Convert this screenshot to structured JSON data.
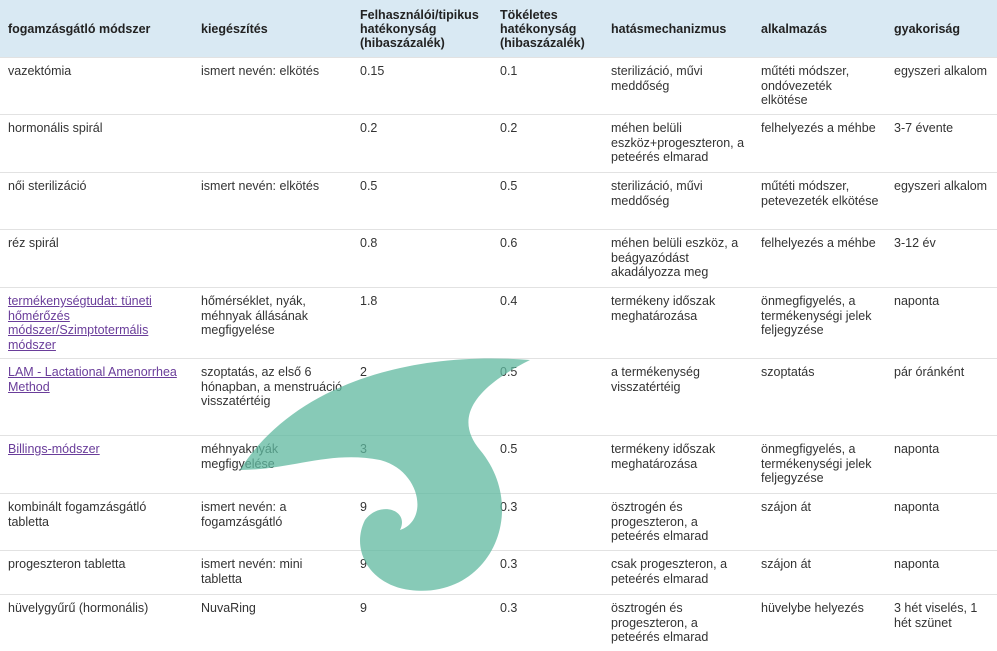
{
  "headers": [
    "fogamzásgátló módszer",
    "kiegészítés",
    "Felhasználói/tipikus hatékonyság (hibaszázalék)",
    "Tökéletes hatékonyság (hibaszázalék)",
    "hatásmechanizmus",
    "alkalmazás",
    "gyakoriság"
  ],
  "rows": [
    [
      "vazektómia",
      "ismert nevén: elkötés",
      "0.15",
      "0.1",
      "sterilizáció, művi meddőség",
      "műtéti módszer, ondóvezeték elkötése",
      "egyszeri alkalom"
    ],
    [
      "hormonális spirál",
      "",
      "0.2",
      "0.2",
      "méhen belüli eszköz+progeszteron, a peteérés elmarad",
      "felhelyezés a méhbe",
      "3-7 évente"
    ],
    [
      "női sterilizáció",
      "ismert nevén: elkötés",
      "0.5",
      "0.5",
      "sterilizáció, művi meddőség",
      "műtéti módszer, petevezeték elkötése",
      "egyszeri alkalom"
    ],
    [
      "réz spirál",
      "",
      "0.8",
      "0.6",
      "méhen belüli eszköz, a beágyazódást akadályozza meg",
      "felhelyezés a méhbe",
      "3-12 év"
    ],
    [
      "termékenységtudat: tüneti hőmérőzés módszer/Szimptotermális módszer",
      "hőmérséklet, nyák, méhnyak állásának megfigyelése",
      "1.8",
      "0.4",
      "termékeny időszak meghatározása",
      "önmegfigyelés, a termékenységi jelek feljegyzése",
      "naponta"
    ],
    [
      "LAM - Lactational Amenorrhea Method",
      "szoptatás, az első 6 hónapban, a menstruáció visszatértéig",
      "2",
      "0.5",
      "a termékenység visszatértéig",
      "szoptatás",
      "pár óránként"
    ],
    [
      "Billings-módszer",
      "méhnyaknyák megfigyelése",
      "3",
      "0.5",
      "termékeny időszak meghatározása",
      "önmegfigyelés, a termékenységi jelek feljegyzése",
      "naponta"
    ],
    [
      "kombinált fogamzásgátló tabletta",
      "ismert nevén: a fogamzásgátló",
      "9",
      "0.3",
      "ösztrogén és progeszteron, a peteérés elmarad",
      "szájon át",
      "naponta"
    ],
    [
      "progeszteron tabletta",
      "ismert nevén: mini tabletta",
      "9",
      "0.3",
      "csak progeszteron, a peteérés elmarad",
      "szájon át",
      "naponta"
    ],
    [
      "hüvelygyűrű (hormonális)",
      "NuvaRing",
      "9",
      "0.3",
      "ösztrogén és progeszteron, a peteérés elmarad",
      "hüvelybe helyezés",
      "3 hét viselés, 1 hét szünet"
    ]
  ],
  "links": [
    4,
    5,
    6
  ]
}
